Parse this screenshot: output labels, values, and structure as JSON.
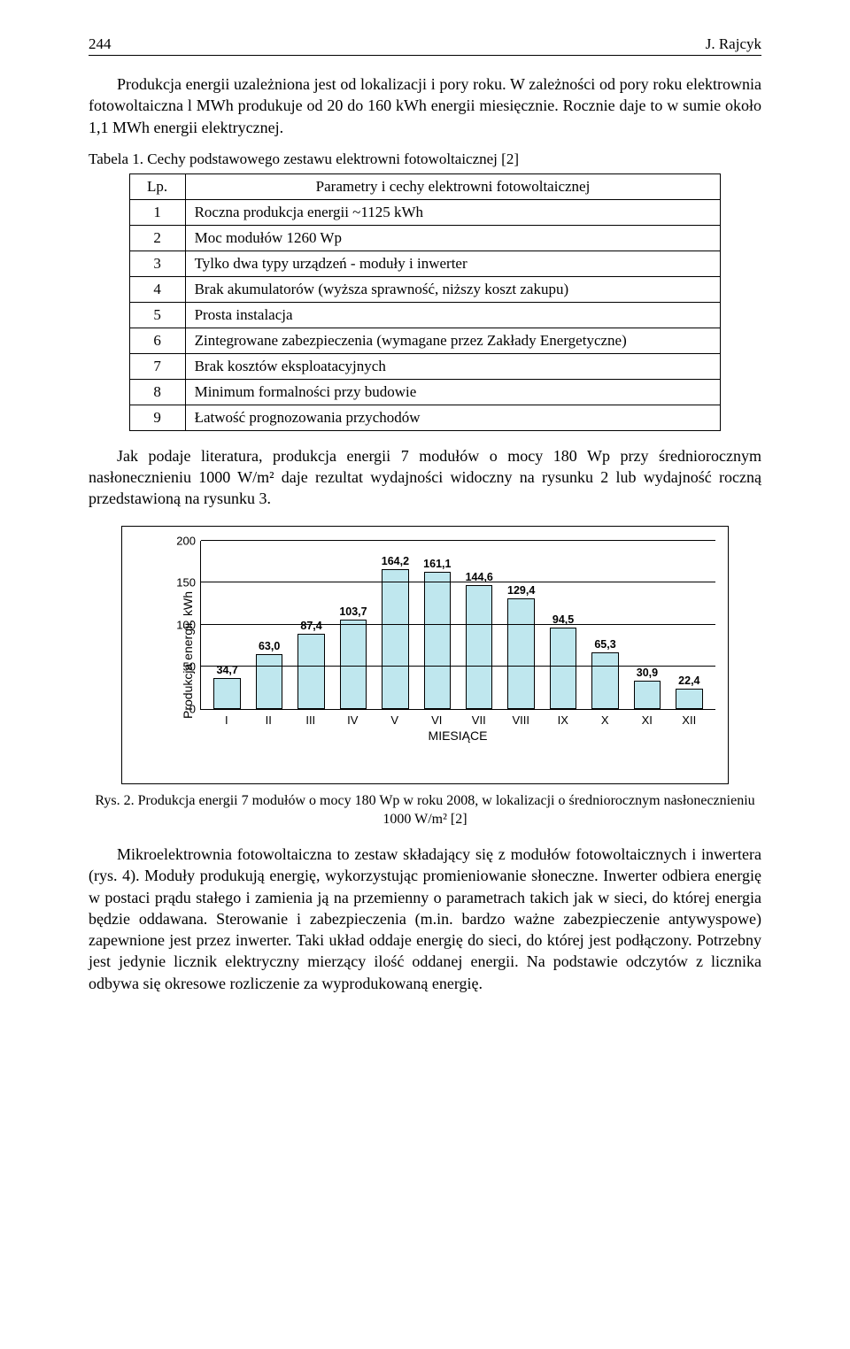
{
  "header": {
    "page_number": "244",
    "author": "J. Rajcyk"
  },
  "para1": "Produkcja energii uzależniona jest od lokalizacji i pory roku. W zależności od pory roku elektrownia fotowoltaiczna l MWh produkuje od 20 do 160 kWh energii miesięcznie. Rocznie daje to w sumie około 1,1 MWh energii elektrycznej.",
  "table": {
    "caption": "Tabela 1. Cechy podstawowego zestawu elektrowni fotowoltaicznej [2]",
    "head_left": "Lp.",
    "head_right": "Parametry i cechy elektrowni fotowoltaicznej",
    "rows": [
      {
        "n": "1",
        "t": "Roczna produkcja energii ~1125 kWh"
      },
      {
        "n": "2",
        "t": "Moc modułów 1260 Wp"
      },
      {
        "n": "3",
        "t": "Tylko dwa typy urządzeń - moduły i inwerter"
      },
      {
        "n": "4",
        "t": "Brak akumulatorów (wyższa sprawność, niższy koszt zakupu)"
      },
      {
        "n": "5",
        "t": "Prosta instalacja"
      },
      {
        "n": "6",
        "t": "Zintegrowane zabezpieczenia (wymagane przez Zakłady Energetyczne)"
      },
      {
        "n": "7",
        "t": "Brak kosztów eksploatacyjnych"
      },
      {
        "n": "8",
        "t": "Minimum formalności przy budowie"
      },
      {
        "n": "9",
        "t": "Łatwość prognozowania przychodów"
      }
    ]
  },
  "para2": "Jak podaje literatura, produkcja energii 7 modułów o mocy 180 Wp przy średniorocznym nasłonecznieniu 1000 W/m² daje rezultat wydajności widoczny na rysunku 2 lub wydajność roczną przedstawioną na rysunku 3.",
  "chart": {
    "type": "bar",
    "ylabel": "Produkcja energii, kWh",
    "xlabel": "MIESIĄCE",
    "categories": [
      "I",
      "II",
      "III",
      "IV",
      "V",
      "VI",
      "VII",
      "VIII",
      "IX",
      "X",
      "XI",
      "XII"
    ],
    "values": [
      34.7,
      63.0,
      87.4,
      103.7,
      164.2,
      161.1,
      144.6,
      129.4,
      94.5,
      65.3,
      30.9,
      22.4
    ],
    "value_labels": [
      "34,7",
      "63,0",
      "87,4",
      "103,7",
      "164,2",
      "161,1",
      "144,6",
      "129,4",
      "94,5",
      "65,3",
      "30,9",
      "22,4"
    ],
    "ylim": [
      0,
      200
    ],
    "ytick_step": 50,
    "yticks": [
      "0",
      "50",
      "100",
      "150",
      "200"
    ],
    "bar_color": "#bfe7ee",
    "bar_border_color": "#000000",
    "grid_color": "#000000",
    "background_color": "#ffffff",
    "label_fontsize": 13,
    "title_fontsize": 14,
    "bar_width": 0.6
  },
  "fig_caption": "Rys. 2. Produkcja energii 7 modułów o mocy 180 Wp w roku 2008, w lokalizacji o średniorocznym nasłonecznieniu 1000 W/m² [2]",
  "para3": "Mikroelektrownia fotowoltaiczna to zestaw składający się z modułów fotowoltaicznych i inwertera (rys. 4). Moduły produkują energię, wykorzystując promieniowanie słoneczne. Inwerter odbiera energię w postaci prądu stałego i zamienia ją na przemienny o parametrach takich jak w sieci, do której energia będzie oddawana. Sterowanie i zabezpieczenia (m.in. bardzo ważne zabezpieczenie antywyspowe) zapewnione jest przez inwerter. Taki układ oddaje energię do sieci, do której jest podłączony. Potrzebny jest jedynie licznik elektryczny mierzący ilość oddanej energii. Na podstawie odczytów z licznika odbywa się okresowe rozliczenie za wyprodukowaną energię."
}
